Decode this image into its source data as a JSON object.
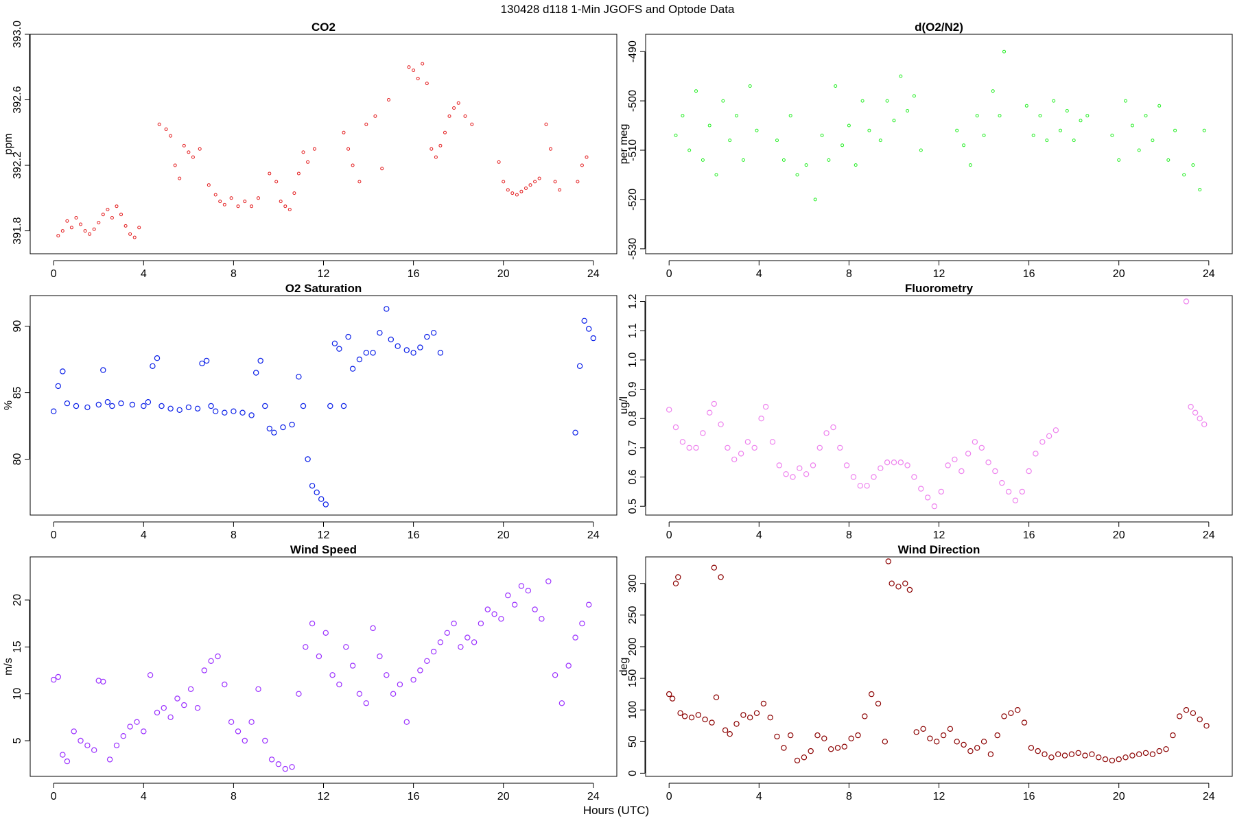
{
  "page": {
    "title": "130428   d118   1-Min  JGOFS and Optode Data",
    "xlabel": "Hours (UTC)"
  },
  "chart_data": [
    {
      "id": "co2",
      "type": "scatter",
      "title": "CO2",
      "ylabel": "ppm",
      "color": "#e31a1c",
      "marker": "small-circle",
      "xlim": [
        0,
        24
      ],
      "ylim": [
        391.66,
        393.0
      ],
      "xticks": [
        0,
        4,
        8,
        12,
        16,
        20,
        24
      ],
      "yticks": [
        391.8,
        392.2,
        392.6,
        393.0
      ],
      "yticklabels": [
        "391.8",
        "392.2",
        "392.6",
        "393.0"
      ],
      "x": [
        0.2,
        0.4,
        0.6,
        0.8,
        1.0,
        1.2,
        1.4,
        1.6,
        1.8,
        2.0,
        2.2,
        2.4,
        2.6,
        2.8,
        3.0,
        3.2,
        3.4,
        3.6,
        3.8,
        4.7,
        5.0,
        5.2,
        5.4,
        5.6,
        5.8,
        6.0,
        6.2,
        6.5,
        6.9,
        7.2,
        7.4,
        7.6,
        7.9,
        8.2,
        8.5,
        8.8,
        9.1,
        9.6,
        9.9,
        10.1,
        10.3,
        10.5,
        10.7,
        10.9,
        11.1,
        11.3,
        11.6,
        12.9,
        13.1,
        13.3,
        13.6,
        13.9,
        14.3,
        14.6,
        14.9,
        15.8,
        16.0,
        16.2,
        16.4,
        16.6,
        16.8,
        17.0,
        17.2,
        17.4,
        17.6,
        17.8,
        18.0,
        18.3,
        18.6,
        19.8,
        20.0,
        20.2,
        20.4,
        20.6,
        20.8,
        21.0,
        21.2,
        21.4,
        21.6,
        21.9,
        22.1,
        22.3,
        22.5,
        23.3,
        23.5,
        23.7
      ],
      "y": [
        391.77,
        391.8,
        391.86,
        391.82,
        391.88,
        391.84,
        391.8,
        391.78,
        391.81,
        391.85,
        391.9,
        391.93,
        391.88,
        391.95,
        391.9,
        391.83,
        391.78,
        391.76,
        391.82,
        392.45,
        392.42,
        392.38,
        392.2,
        392.12,
        392.32,
        392.28,
        392.25,
        392.3,
        392.08,
        392.02,
        391.98,
        391.96,
        392.0,
        391.95,
        391.98,
        391.95,
        392.0,
        392.15,
        392.1,
        391.98,
        391.95,
        391.93,
        392.03,
        392.15,
        392.28,
        392.22,
        392.3,
        392.4,
        392.3,
        392.2,
        392.1,
        392.45,
        392.5,
        392.18,
        392.6,
        392.8,
        392.78,
        392.73,
        392.82,
        392.7,
        392.3,
        392.25,
        392.32,
        392.4,
        392.5,
        392.55,
        392.58,
        392.5,
        392.45,
        392.22,
        392.1,
        392.05,
        392.03,
        392.02,
        392.04,
        392.06,
        392.08,
        392.1,
        392.12,
        392.45,
        392.3,
        392.1,
        392.05,
        392.1,
        392.2,
        392.25
      ]
    },
    {
      "id": "do2n2",
      "type": "scatter",
      "title": "d(O2/N2)",
      "ylabel": "per meg",
      "color": "#22ee22",
      "marker": "small-circle",
      "xlim": [
        0,
        24
      ],
      "ylim": [
        -531,
        -486.5
      ],
      "xticks": [
        0,
        4,
        8,
        12,
        16,
        20,
        24
      ],
      "yticks": [
        -530,
        -520,
        -510,
        -500,
        -490
      ],
      "yticklabels": [
        "-530",
        "-520",
        "-510",
        "-500",
        "-490"
      ],
      "x": [
        0.3,
        0.6,
        0.9,
        1.2,
        1.5,
        1.8,
        2.1,
        2.4,
        2.7,
        3.0,
        3.3,
        3.6,
        3.9,
        4.8,
        5.1,
        5.4,
        5.7,
        6.1,
        6.5,
        6.8,
        7.1,
        7.4,
        7.7,
        8.0,
        8.3,
        8.6,
        8.9,
        9.4,
        9.7,
        10.0,
        10.3,
        10.6,
        10.9,
        11.2,
        12.8,
        13.1,
        13.4,
        13.7,
        14.0,
        14.4,
        14.7,
        14.9,
        15.9,
        16.2,
        16.5,
        16.8,
        17.1,
        17.4,
        17.7,
        18.0,
        18.3,
        18.6,
        19.7,
        20.0,
        20.3,
        20.6,
        20.9,
        21.2,
        21.5,
        21.8,
        22.2,
        22.5,
        22.9,
        23.3,
        23.6,
        23.8
      ],
      "y": [
        -507,
        -503,
        -510,
        -498,
        -512,
        -505,
        -515,
        -500,
        -508,
        -503,
        -512,
        -497,
        -506,
        -508,
        -512,
        -503,
        -515,
        -513,
        -520,
        -507,
        -512,
        -497,
        -509,
        -505,
        -513,
        -500,
        -506,
        -508,
        -500,
        -504,
        -495,
        -502,
        -499,
        -510,
        -506,
        -509,
        -513,
        -503,
        -507,
        -498,
        -503,
        -490,
        -501,
        -507,
        -503,
        -508,
        -500,
        -506,
        -502,
        -508,
        -504,
        -503,
        -507,
        -512,
        -500,
        -505,
        -510,
        -503,
        -508,
        -501,
        -512,
        -506,
        -515,
        -513,
        -518,
        -506
      ]
    },
    {
      "id": "o2sat",
      "type": "scatter",
      "title": "O2 Saturation",
      "ylabel": "%",
      "color": "#0a1fe8",
      "marker": "large-circle",
      "xlim": [
        0,
        24
      ],
      "ylim": [
        75.8,
        92.3
      ],
      "xticks": [
        0,
        4,
        8,
        12,
        16,
        20,
        24
      ],
      "yticks": [
        80,
        85,
        90
      ],
      "yticklabels": [
        "80",
        "85",
        "90"
      ],
      "x": [
        0.0,
        0.2,
        0.4,
        0.6,
        1.0,
        1.5,
        2.0,
        2.2,
        2.4,
        2.6,
        3.0,
        3.5,
        4.0,
        4.2,
        4.4,
        4.6,
        4.8,
        5.2,
        5.6,
        6.0,
        6.4,
        6.6,
        6.8,
        7.0,
        7.2,
        7.6,
        8.0,
        8.4,
        8.8,
        9.0,
        9.2,
        9.4,
        9.6,
        9.8,
        10.2,
        10.6,
        10.9,
        11.1,
        11.3,
        11.5,
        11.7,
        11.9,
        12.1,
        12.3,
        12.5,
        12.7,
        12.9,
        13.1,
        13.3,
        13.6,
        13.9,
        14.2,
        14.5,
        14.8,
        15.0,
        15.3,
        15.7,
        16.0,
        16.3,
        16.6,
        16.9,
        17.2,
        23.2,
        23.4,
        23.6,
        23.8,
        24.0
      ],
      "y": [
        83.6,
        85.5,
        86.6,
        84.2,
        84.0,
        83.9,
        84.1,
        86.7,
        84.3,
        84.0,
        84.2,
        84.1,
        84.0,
        84.3,
        87.0,
        87.6,
        84.0,
        83.8,
        83.7,
        83.9,
        83.8,
        87.2,
        87.4,
        84.0,
        83.6,
        83.5,
        83.6,
        83.5,
        83.3,
        86.5,
        87.4,
        84.0,
        82.3,
        82.0,
        82.4,
        82.6,
        86.2,
        84.0,
        80.0,
        78.0,
        77.5,
        77.0,
        76.6,
        84.0,
        88.7,
        88.3,
        84.0,
        89.2,
        86.8,
        87.5,
        88.0,
        88.0,
        89.5,
        91.3,
        89.0,
        88.5,
        88.2,
        88.0,
        88.4,
        89.2,
        89.5,
        88.0,
        82.0,
        87.0,
        90.4,
        89.8,
        89.1
      ]
    },
    {
      "id": "fluor",
      "type": "scatter",
      "title": "Fluorometry",
      "ylabel": "ug/l",
      "color": "#ee82ee",
      "marker": "large-circle",
      "xlim": [
        0,
        24
      ],
      "ylim": [
        0.47,
        1.22
      ],
      "xticks": [
        0,
        4,
        8,
        12,
        16,
        20,
        24
      ],
      "yticks": [
        0.5,
        0.6,
        0.7,
        0.8,
        0.9,
        1.0,
        1.1,
        1.2
      ],
      "yticklabels": [
        "0.5",
        "0.6",
        "0.7",
        "0.8",
        "0.9",
        "1.0",
        "1.1",
        "1.2"
      ],
      "x": [
        0.0,
        0.3,
        0.6,
        0.9,
        1.2,
        1.5,
        1.8,
        2.0,
        2.3,
        2.6,
        2.9,
        3.2,
        3.5,
        3.8,
        4.1,
        4.3,
        4.6,
        4.9,
        5.2,
        5.5,
        5.8,
        6.1,
        6.4,
        6.7,
        7.0,
        7.3,
        7.6,
        7.9,
        8.2,
        8.5,
        8.8,
        9.1,
        9.4,
        9.7,
        10.0,
        10.3,
        10.6,
        10.9,
        11.2,
        11.5,
        11.8,
        12.1,
        12.4,
        12.7,
        13.0,
        13.3,
        13.6,
        13.9,
        14.2,
        14.5,
        14.8,
        15.1,
        15.4,
        15.7,
        16.0,
        16.3,
        16.6,
        16.9,
        17.2,
        23.0,
        23.2,
        23.4,
        23.6,
        23.8
      ],
      "y": [
        0.83,
        0.77,
        0.72,
        0.7,
        0.7,
        0.75,
        0.82,
        0.85,
        0.78,
        0.7,
        0.66,
        0.68,
        0.72,
        0.7,
        0.8,
        0.84,
        0.72,
        0.64,
        0.61,
        0.6,
        0.63,
        0.61,
        0.64,
        0.7,
        0.75,
        0.77,
        0.7,
        0.64,
        0.6,
        0.57,
        0.57,
        0.6,
        0.63,
        0.65,
        0.65,
        0.65,
        0.64,
        0.6,
        0.56,
        0.53,
        0.5,
        0.55,
        0.64,
        0.66,
        0.62,
        0.68,
        0.72,
        0.7,
        0.65,
        0.62,
        0.58,
        0.55,
        0.52,
        0.55,
        0.62,
        0.68,
        0.72,
        0.74,
        0.76,
        1.2,
        0.84,
        0.82,
        0.8,
        0.78
      ]
    },
    {
      "id": "wspd",
      "type": "scatter",
      "title": "Wind Speed",
      "ylabel": "m/s",
      "color": "#9b30ff",
      "marker": "large-circle",
      "xlim": [
        0,
        24
      ],
      "ylim": [
        1.2,
        24.6
      ],
      "xticks": [
        0,
        4,
        8,
        12,
        16,
        20,
        24
      ],
      "yticks": [
        5,
        10,
        15,
        20
      ],
      "yticklabels": [
        "5",
        "10",
        "15",
        "20"
      ],
      "x": [
        0.0,
        0.2,
        0.4,
        0.6,
        0.9,
        1.2,
        1.5,
        1.8,
        2.0,
        2.2,
        2.5,
        2.8,
        3.1,
        3.4,
        3.7,
        4.0,
        4.3,
        4.6,
        4.9,
        5.2,
        5.5,
        5.8,
        6.1,
        6.4,
        6.7,
        7.0,
        7.3,
        7.6,
        7.9,
        8.2,
        8.5,
        8.8,
        9.1,
        9.4,
        9.7,
        10.0,
        10.3,
        10.6,
        10.9,
        11.2,
        11.5,
        11.8,
        12.1,
        12.4,
        12.7,
        13.0,
        13.3,
        13.6,
        13.9,
        14.2,
        14.5,
        14.8,
        15.1,
        15.4,
        15.7,
        16.0,
        16.3,
        16.6,
        16.9,
        17.2,
        17.5,
        17.8,
        18.1,
        18.4,
        18.7,
        19.0,
        19.3,
        19.6,
        19.9,
        20.2,
        20.5,
        20.8,
        21.1,
        21.4,
        21.7,
        22.0,
        22.3,
        22.6,
        22.9,
        23.2,
        23.5,
        23.8
      ],
      "y": [
        11.5,
        11.8,
        3.5,
        2.8,
        6.0,
        5.0,
        4.5,
        4.0,
        11.4,
        11.3,
        3.0,
        4.5,
        5.5,
        6.5,
        7.0,
        6.0,
        12.0,
        8.0,
        8.5,
        7.5,
        9.5,
        8.8,
        10.5,
        8.5,
        12.5,
        13.5,
        14.0,
        11.0,
        7.0,
        6.0,
        5.0,
        7.0,
        10.5,
        5.0,
        3.0,
        2.5,
        2.0,
        2.2,
        10.0,
        15.0,
        17.5,
        14.0,
        16.5,
        12.0,
        11.0,
        15.0,
        13.0,
        10.0,
        9.0,
        17.0,
        14.0,
        12.0,
        10.0,
        11.0,
        7.0,
        11.5,
        12.5,
        13.5,
        14.5,
        15.5,
        16.5,
        17.5,
        15.0,
        16.0,
        15.5,
        17.5,
        19.0,
        18.5,
        18.0,
        20.5,
        19.5,
        21.5,
        21.0,
        19.0,
        18.0,
        22.0,
        12.0,
        9.0,
        13.0,
        16.0,
        17.5,
        19.5
      ]
    },
    {
      "id": "wdir",
      "type": "scatter",
      "title": "Wind Direction",
      "ylabel": "deg",
      "color": "#8b0000",
      "marker": "large-circle",
      "xlim": [
        0,
        24
      ],
      "ylim": [
        -5,
        342
      ],
      "xticks": [
        0,
        4,
        8,
        12,
        16,
        20,
        24
      ],
      "yticks": [
        0,
        50,
        100,
        150,
        200,
        250,
        300
      ],
      "yticklabels": [
        "0",
        "50",
        "100",
        "150",
        "200",
        "250",
        "300"
      ],
      "x": [
        0.0,
        0.15,
        0.3,
        0.4,
        0.5,
        0.7,
        1.0,
        1.3,
        1.6,
        1.9,
        2.0,
        2.1,
        2.3,
        2.5,
        2.7,
        3.0,
        3.3,
        3.6,
        3.9,
        4.2,
        4.5,
        4.8,
        5.1,
        5.4,
        5.7,
        6.0,
        6.3,
        6.6,
        6.9,
        7.2,
        7.5,
        7.8,
        8.1,
        8.4,
        8.7,
        9.0,
        9.3,
        9.6,
        9.75,
        9.9,
        10.2,
        10.5,
        10.7,
        11.0,
        11.3,
        11.6,
        11.9,
        12.2,
        12.5,
        12.8,
        13.1,
        13.4,
        13.7,
        14.0,
        14.3,
        14.6,
        14.9,
        15.2,
        15.5,
        15.8,
        16.1,
        16.4,
        16.7,
        17.0,
        17.3,
        17.6,
        17.9,
        18.2,
        18.5,
        18.8,
        19.1,
        19.4,
        19.7,
        20.0,
        20.3,
        20.6,
        20.9,
        21.2,
        21.5,
        21.8,
        22.1,
        22.4,
        22.7,
        23.0,
        23.3,
        23.6,
        23.9
      ],
      "y": [
        125,
        118,
        300,
        310,
        95,
        90,
        88,
        92,
        85,
        80,
        325,
        120,
        310,
        68,
        62,
        78,
        92,
        88,
        95,
        110,
        88,
        58,
        40,
        60,
        20,
        25,
        35,
        60,
        55,
        38,
        40,
        42,
        55,
        60,
        90,
        125,
        110,
        50,
        335,
        300,
        295,
        300,
        290,
        65,
        70,
        55,
        50,
        60,
        70,
        50,
        45,
        35,
        40,
        50,
        30,
        60,
        90,
        95,
        100,
        80,
        40,
        35,
        30,
        25,
        30,
        28,
        30,
        32,
        28,
        30,
        25,
        22,
        20,
        22,
        25,
        28,
        30,
        32,
        30,
        35,
        38,
        60,
        90,
        100,
        95,
        85,
        75
      ]
    }
  ]
}
